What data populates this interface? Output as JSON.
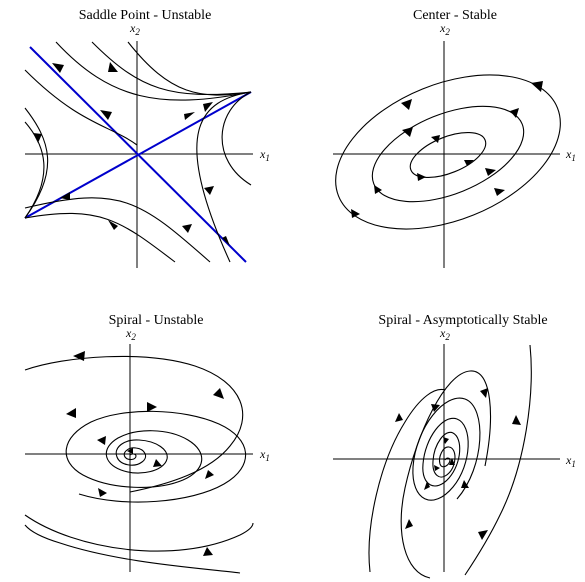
{
  "panels": [
    {
      "id": "saddle",
      "title": "Saddle Point - Unstable",
      "x_label": "x",
      "x_sub": "1",
      "y_label": "x",
      "y_sub": "2"
    },
    {
      "id": "center",
      "title": "Center - Stable",
      "x_label": "x",
      "x_sub": "1",
      "y_label": "x",
      "y_sub": "2"
    },
    {
      "id": "spiral-unstable",
      "title": "Spiral - Unstable",
      "x_label": "x",
      "x_sub": "1",
      "y_label": "x",
      "y_sub": "2"
    },
    {
      "id": "spiral-stable",
      "title": "Spiral - Asymptotically Stable",
      "x_label": "x",
      "x_sub": "1",
      "y_label": "x",
      "y_sub": "2"
    }
  ],
  "colors": {
    "eigenvector_lines": "#0000cc",
    "trajectories": "#000000",
    "axes": "#000000"
  }
}
